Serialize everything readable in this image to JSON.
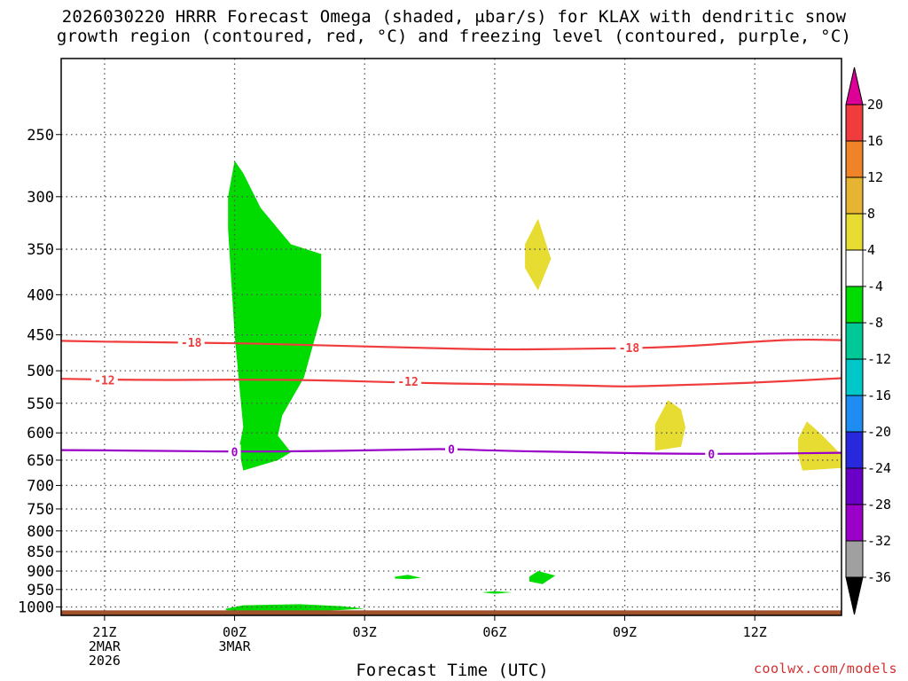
{
  "title_lines": [
    "2026030220 HRRR Forecast Omega (shaded, μbar/s) for KLAX with dendritic snow",
    "growth region (contoured, red, °C) and freezing level (contoured, purple, °C)"
  ],
  "credit": "coolwx.com/models",
  "chart_data": {
    "type": "contour",
    "title": "2026030220 HRRR Forecast Omega (shaded, μbar/s) for KLAX with dendritic snow growth region (contoured, red, °C) and freezing level (contoured, purple, °C)",
    "xlabel": "Forecast Time (UTC)",
    "ylabel": "",
    "x_unit": "hours since 2026-03-02 20Z",
    "xlim": [
      0,
      18
    ],
    "ylim": [
      1000,
      200
    ],
    "y_scale": "log pressure (hPa)",
    "grid": true,
    "x_ticks": [
      {
        "x": 1,
        "lines": [
          "21Z",
          "2MAR",
          "2026"
        ]
      },
      {
        "x": 4,
        "lines": [
          "00Z",
          "3MAR"
        ]
      },
      {
        "x": 7,
        "lines": [
          "03Z"
        ]
      },
      {
        "x": 10,
        "lines": [
          "06Z"
        ]
      },
      {
        "x": 13,
        "lines": [
          "09Z"
        ]
      },
      {
        "x": 16,
        "lines": [
          "12Z"
        ]
      }
    ],
    "y_ticks": [
      250,
      300,
      350,
      400,
      450,
      500,
      550,
      600,
      650,
      700,
      750,
      800,
      850,
      900,
      950,
      1000
    ],
    "colorbar": {
      "levels": [
        -36,
        -32,
        -28,
        -24,
        -20,
        -16,
        -12,
        -8,
        -4,
        4,
        8,
        12,
        16,
        20
      ],
      "label_levels": [
        20,
        16,
        12,
        8,
        4,
        -4,
        -8,
        -12,
        -16,
        -20,
        -24,
        -28,
        -32,
        -36
      ],
      "colors": [
        "#000000",
        "#a0a0a0",
        "#9b00c8",
        "#6a00c8",
        "#2828dc",
        "#1e8cf0",
        "#00c8c8",
        "#00c896",
        "#00dc00",
        "#ffffff",
        "#e6dc32",
        "#e6b432",
        "#f08228",
        "#f03c3c",
        "#dc0096"
      ],
      "extend": "both"
    },
    "contours": [
      {
        "name": "-18",
        "color": "#f03c3c",
        "label": "-18",
        "points": [
          [
            0,
            458
          ],
          [
            2,
            460
          ],
          [
            4,
            461
          ],
          [
            6,
            464
          ],
          [
            8,
            467
          ],
          [
            10,
            470
          ],
          [
            12,
            469
          ],
          [
            14,
            467
          ],
          [
            16,
            459
          ],
          [
            17,
            456
          ],
          [
            18,
            457
          ]
        ]
      },
      {
        "name": "-12",
        "color": "#f03c3c",
        "label": "-12",
        "points": [
          [
            0,
            512
          ],
          [
            2,
            514
          ],
          [
            4,
            513
          ],
          [
            6,
            514
          ],
          [
            8,
            518
          ],
          [
            10,
            520
          ],
          [
            12,
            522
          ],
          [
            13,
            524
          ],
          [
            14,
            522
          ],
          [
            16,
            518
          ],
          [
            18,
            511
          ]
        ]
      },
      {
        "name": "0",
        "color": "#9b00c8",
        "label": "0",
        "points": [
          [
            0,
            631
          ],
          [
            2,
            632
          ],
          [
            4,
            634
          ],
          [
            6,
            633
          ],
          [
            8,
            630
          ],
          [
            9,
            629
          ],
          [
            10,
            632
          ],
          [
            12,
            635
          ],
          [
            14,
            638
          ],
          [
            16,
            638
          ],
          [
            18,
            636
          ]
        ]
      }
    ],
    "contour_label_positions": [
      {
        "label": "-18",
        "x": 3.0,
        "p": 460
      },
      {
        "label": "-18",
        "x": 13.1,
        "p": 467
      },
      {
        "label": "-12",
        "x": 1.0,
        "p": 514
      },
      {
        "label": "-12",
        "x": 8.0,
        "p": 516
      },
      {
        "label": "0",
        "x": 4.0,
        "p": 634
      },
      {
        "label": "0",
        "x": 9.0,
        "p": 629
      },
      {
        "label": "0",
        "x": 15.0,
        "p": 638
      }
    ],
    "shaded_regions": [
      {
        "range": [
          -8,
          -4
        ],
        "color": "#00dc00",
        "points": [
          [
            3.85,
            300
          ],
          [
            4.0,
            270
          ],
          [
            4.2,
            280
          ],
          [
            4.6,
            310
          ],
          [
            5.3,
            345
          ],
          [
            6.0,
            355
          ],
          [
            6.0,
            425
          ],
          [
            5.6,
            510
          ],
          [
            5.1,
            570
          ],
          [
            5.0,
            605
          ],
          [
            5.3,
            635
          ],
          [
            5.0,
            650
          ],
          [
            4.2,
            670
          ],
          [
            4.1,
            630
          ],
          [
            4.2,
            590
          ],
          [
            4.0,
            450
          ],
          [
            3.85,
            330
          ]
        ]
      },
      {
        "range": [
          4,
          8
        ],
        "color": "#e6dc32",
        "points": [
          [
            10.7,
            345
          ],
          [
            11.0,
            320
          ],
          [
            11.3,
            360
          ],
          [
            11.0,
            395
          ],
          [
            10.7,
            370
          ]
        ]
      },
      {
        "range": [
          4,
          8
        ],
        "color": "#e6dc32",
        "points": [
          [
            13.7,
            585
          ],
          [
            14.0,
            545
          ],
          [
            14.3,
            560
          ],
          [
            14.4,
            590
          ],
          [
            14.3,
            625
          ],
          [
            13.7,
            632
          ]
        ]
      },
      {
        "range": [
          4,
          8
        ],
        "color": "#e6dc32",
        "points": [
          [
            17.0,
            610
          ],
          [
            17.2,
            580
          ],
          [
            17.5,
            600
          ],
          [
            18,
            640
          ],
          [
            18,
            665
          ],
          [
            17.1,
            670
          ],
          [
            17.0,
            640
          ]
        ]
      },
      {
        "range": [
          -8,
          -4
        ],
        "color": "#00dc00",
        "points": [
          [
            7.7,
            915
          ],
          [
            8.0,
            910
          ],
          [
            8.3,
            918
          ],
          [
            8.0,
            922
          ],
          [
            7.7,
            920
          ]
        ]
      },
      {
        "range": [
          -8,
          -4
        ],
        "color": "#00dc00",
        "points": [
          [
            9.7,
            958
          ],
          [
            10.0,
            955
          ],
          [
            10.4,
            958
          ],
          [
            10.0,
            962
          ]
        ]
      },
      {
        "range": [
          -8,
          -4
        ],
        "color": "#00dc00",
        "points": [
          [
            10.8,
            915
          ],
          [
            11.0,
            900
          ],
          [
            11.4,
            912
          ],
          [
            11.1,
            935
          ],
          [
            10.8,
            928
          ]
        ]
      },
      {
        "range": [
          -8,
          -4
        ],
        "color": "#00dc00",
        "points": [
          [
            3.8,
            1005
          ],
          [
            4.2,
            995
          ],
          [
            5.5,
            992
          ],
          [
            6.5,
            998
          ],
          [
            7.0,
            1005
          ],
          [
            6.0,
            1012
          ],
          [
            4.5,
            1013
          ],
          [
            3.8,
            1010
          ]
        ]
      }
    ],
    "terrain": {
      "color": "#a0522d",
      "top_p": 1010
    }
  }
}
